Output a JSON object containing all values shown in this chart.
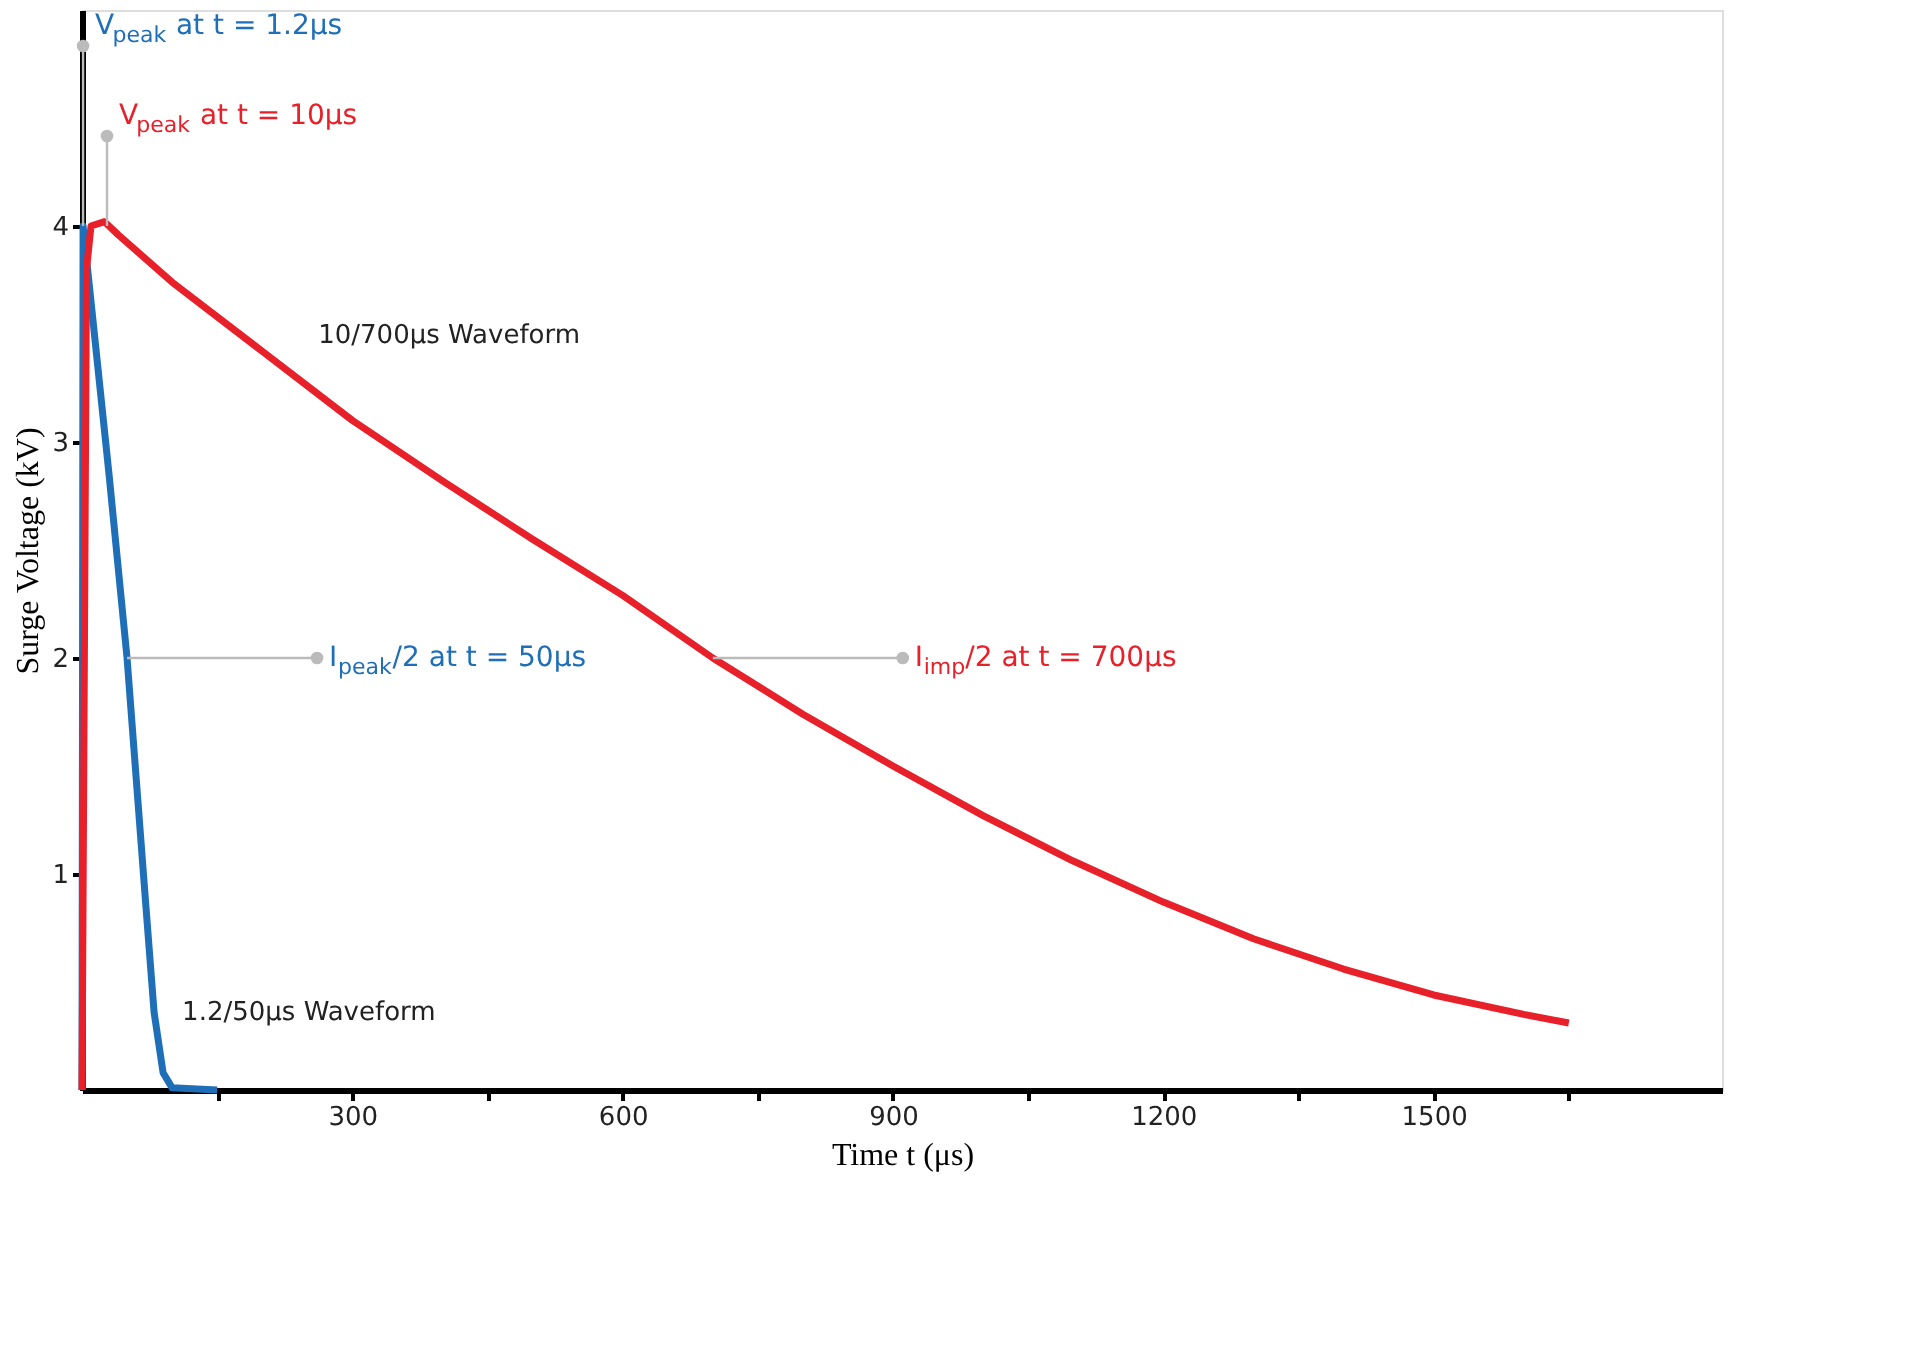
{
  "chart_data": {
    "type": "line",
    "xlabel": "Time t (μs)",
    "ylabel": "Surge Voltage (kV)",
    "xlim": [
      0,
      1820
    ],
    "ylim": [
      0,
      5
    ],
    "xticks": [
      {
        "value": 150,
        "label": null
      },
      300,
      {
        "value": 450,
        "label": null
      },
      600,
      {
        "value": 750,
        "label": null
      },
      900,
      {
        "value": 1050,
        "label": null
      },
      1200,
      {
        "value": 1350,
        "label": null
      },
      1500,
      {
        "value": 1650,
        "label": null
      }
    ],
    "yticks": [
      1,
      2,
      3,
      4
    ],
    "grid": false,
    "legend": false,
    "marker": "none",
    "line_style": "solid",
    "series": [
      {
        "name": "1.2/50μs Waveform",
        "color": "#1f6fb8",
        "x": [
          0,
          1.2,
          10,
          30,
          50,
          70,
          80,
          90,
          100,
          150
        ],
        "values": [
          0,
          4.0,
          3.65,
          2.85,
          2.0,
          0.9,
          0.36,
          0.08,
          0.01,
          0
        ]
      },
      {
        "name": "10/700μs Waveform",
        "color": "#e8202a",
        "x": [
          0,
          5,
          10,
          25,
          40,
          100,
          200,
          300,
          400,
          500,
          600,
          700,
          800,
          900,
          1000,
          1100,
          1200,
          1300,
          1400,
          1500,
          1600,
          1650
        ],
        "values": [
          0,
          3.8,
          4.0,
          4.02,
          3.96,
          3.74,
          3.42,
          3.1,
          2.82,
          2.55,
          2.29,
          2.0,
          1.74,
          1.5,
          1.27,
          1.06,
          0.87,
          0.7,
          0.56,
          0.44,
          0.35,
          0.31
        ]
      }
    ],
    "annotations": [
      {
        "text": "V$_{peak}$ at t = 1.2μs",
        "x": 1.2,
        "y": 4
      },
      {
        "text": "V$_{peak}$ at t = 10μs",
        "x": 10,
        "y": 4
      },
      {
        "text": "I$_{peak}$/2 at t = 50μs",
        "x": 50,
        "y": 2
      },
      {
        "text": "I$_{imp}$/2 at t = 700μs",
        "x": 700,
        "y": 2
      }
    ]
  }
}
